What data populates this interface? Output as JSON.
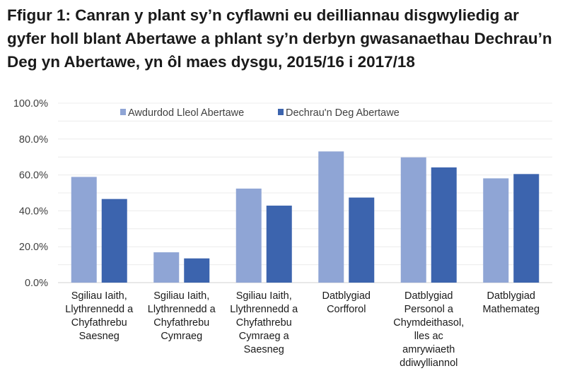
{
  "title": "Ffigur 1: Canran y plant sy’n cyflawni eu deilliannau disgwyliedig ar gyfer holl blant Abertawe a phlant sy’n derbyn gwasanaethau Dechrau’n Deg yn Abertawe, yn ôl maes dysgu, 2015/16 i 2017/18",
  "chart_data": {
    "type": "bar",
    "title": "Ffigur 1: Canran y plant sy’n cyflawni eu deilliannau disgwyliedig ar gyfer holl blant Abertawe a phlant sy’n derbyn gwasanaethau Dechrau’n Deg yn Abertawe, yn ôl maes dysgu, 2015/16 i 2017/18",
    "xlabel": "",
    "ylabel": "",
    "ylim": [
      0,
      100
    ],
    "yticks": [
      "0.0%",
      "20.0%",
      "40.0%",
      "60.0%",
      "80.0%",
      "100.0%"
    ],
    "grid": true,
    "legend": "top",
    "categories": [
      [
        "Sgiliau Iaith,",
        "Llythrennedd a",
        "Chyfathrebu",
        "Saesneg"
      ],
      [
        "Sgiliau Iaith,",
        "Llythrennedd a",
        "Chyfathrebu",
        "Cymraeg"
      ],
      [
        "Sgiliau Iaith,",
        "Llythrennedd a",
        "Chyfathrebu",
        "Cymraeg a",
        "Saesneg"
      ],
      [
        "Datblygiad",
        "Corfforol"
      ],
      [
        "Datblygiad",
        "Personol a",
        "Chymdeithasol,",
        "lles ac",
        "amrywiaeth",
        "ddiwylliannol"
      ],
      [
        "Datblygiad",
        "Mathemateg"
      ]
    ],
    "series": [
      {
        "name": "Awdurdod Lleol Abertawe",
        "color": "#8fa5d5",
        "values": [
          58.9,
          16.9,
          52.4,
          73.1,
          69.8,
          58.1
        ]
      },
      {
        "name": "Dechrau'n Deg Abertawe",
        "color": "#3c64ae",
        "values": [
          46.6,
          13.5,
          42.9,
          47.4,
          64.2,
          60.5
        ]
      }
    ]
  }
}
